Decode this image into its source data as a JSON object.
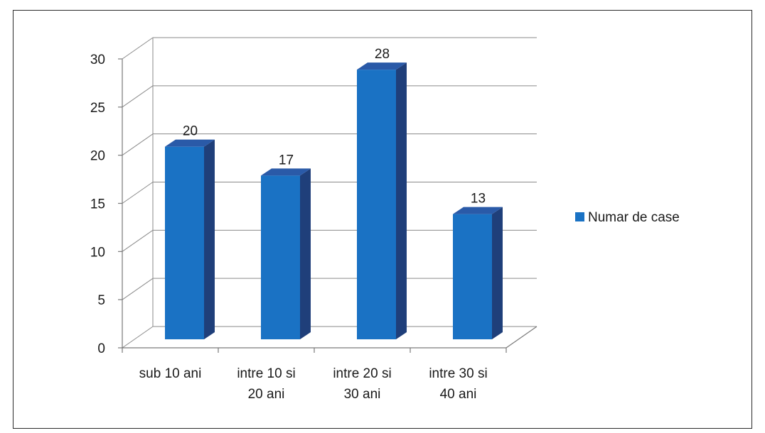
{
  "chart_data": {
    "type": "bar",
    "categories": [
      [
        "sub 10 ani"
      ],
      [
        "intre 10 si",
        "20 ani"
      ],
      [
        "intre 20 si",
        "30  ani"
      ],
      [
        "intre 30 si",
        "40 ani"
      ]
    ],
    "series": [
      {
        "name": "Numar de case",
        "values": [
          20,
          17,
          28,
          13
        ],
        "color": "#1a72c4"
      }
    ],
    "ylim": [
      0,
      30
    ],
    "yticks": [
      "0",
      "5",
      "10",
      "15",
      "20",
      "25",
      "30"
    ],
    "data_labels": [
      "20",
      "17",
      "28",
      "13"
    ],
    "grid": true,
    "style": "3d-column",
    "legend": "right"
  }
}
